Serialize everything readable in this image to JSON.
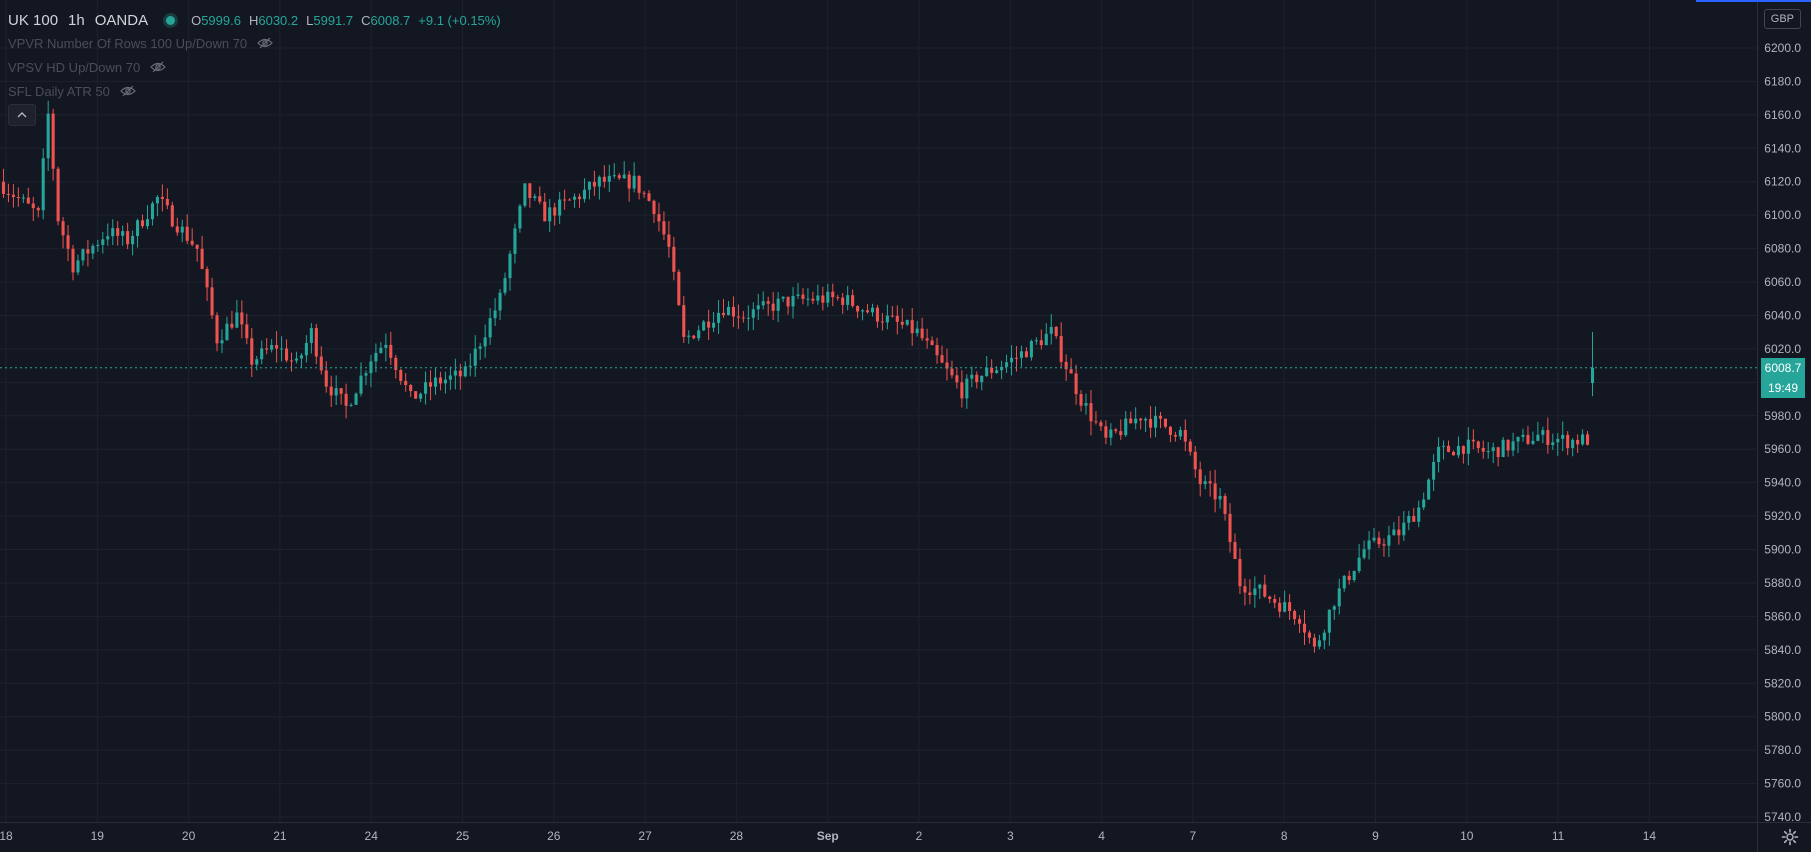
{
  "legend": {
    "symbol": "UK 100",
    "timeframe": "1h",
    "source": "OANDA",
    "open_label": "O",
    "open": "5999.6",
    "high_label": "H",
    "high": "6030.2",
    "low_label": "L",
    "low": "5991.7",
    "close_label": "C",
    "close": "6008.7",
    "change": "+9.1 (+0.15%)"
  },
  "indicators": [
    {
      "label": "VPVR Number Of Rows 100 Up/Down 70",
      "icon": "eye-hidden-icon"
    },
    {
      "label": "VPSV HD Up/Down 70",
      "icon": "eye-hidden-icon"
    },
    {
      "label": "SFL Daily ATR 50",
      "icon": "eye-hidden-icon"
    }
  ],
  "currency": "GBP",
  "last_price": "6008.7",
  "countdown": "19:49",
  "colors": {
    "up": "#26a69a",
    "down": "#ef5350",
    "background": "#131722",
    "grid": "#1e222d",
    "text": "#b2b5be",
    "accent": "#2962ff"
  },
  "chart_data": {
    "type": "candlestick",
    "timeframe": "1h",
    "y_axis": {
      "min": 5740,
      "max": 6200,
      "step": 20,
      "ticks": [
        "6200.0",
        "6180.0",
        "6160.0",
        "6140.0",
        "6120.0",
        "6100.0",
        "6080.0",
        "6060.0",
        "6040.0",
        "6020.0",
        "6000.0",
        "5980.0",
        "5960.0",
        "5940.0",
        "5920.0",
        "5900.0",
        "5880.0",
        "5860.0",
        "5840.0",
        "5820.0",
        "5800.0",
        "5780.0",
        "5760.0",
        "5740.0"
      ]
    },
    "x_axis": {
      "labels": [
        "18",
        "19",
        "20",
        "21",
        "24",
        "25",
        "26",
        "27",
        "28",
        "Sep",
        "2",
        "3",
        "4",
        "7",
        "8",
        "9",
        "10",
        "11",
        "14"
      ],
      "bold": [
        "Sep"
      ]
    },
    "candle_count": 321,
    "path": [
      [
        0,
        6120
      ],
      [
        8,
        6100
      ],
      [
        10,
        6160
      ],
      [
        12,
        6098
      ],
      [
        15,
        6070
      ],
      [
        22,
        6090
      ],
      [
        26,
        6085
      ],
      [
        32,
        6110
      ],
      [
        35,
        6098
      ],
      [
        40,
        6080
      ],
      [
        44,
        6026
      ],
      [
        48,
        6040
      ],
      [
        51,
        6013
      ],
      [
        56,
        6022
      ],
      [
        60,
        6010
      ],
      [
        63,
        6030
      ],
      [
        66,
        6000
      ],
      [
        70,
        5985
      ],
      [
        75,
        6015
      ],
      [
        78,
        6025
      ],
      [
        83,
        5990
      ],
      [
        88,
        6000
      ],
      [
        94,
        6005
      ],
      [
        101,
        6050
      ],
      [
        106,
        6115
      ],
      [
        110,
        6100
      ],
      [
        116,
        6110
      ],
      [
        121,
        6120
      ],
      [
        128,
        6120
      ],
      [
        132,
        6105
      ],
      [
        135,
        6080
      ],
      [
        138,
        6025
      ],
      [
        146,
        6045
      ],
      [
        150,
        6040
      ],
      [
        158,
        6048
      ],
      [
        164,
        6050
      ],
      [
        170,
        6050
      ],
      [
        177,
        6040
      ],
      [
        185,
        6030
      ],
      [
        190,
        6010
      ],
      [
        194,
        5995
      ],
      [
        197,
        6003
      ],
      [
        205,
        6015
      ],
      [
        212,
        6030
      ],
      [
        218,
        5990
      ],
      [
        223,
        5965
      ],
      [
        230,
        5980
      ],
      [
        238,
        5970
      ],
      [
        242,
        5940
      ],
      [
        246,
        5930
      ],
      [
        250,
        5880
      ],
      [
        254,
        5875
      ],
      [
        262,
        5860
      ],
      [
        265,
        5840
      ],
      [
        269,
        5870
      ],
      [
        275,
        5900
      ],
      [
        282,
        5910
      ],
      [
        286,
        5925
      ],
      [
        290,
        5958
      ],
      [
        295,
        5962
      ],
      [
        300,
        5958
      ],
      [
        305,
        5963
      ],
      [
        310,
        5968
      ],
      [
        316,
        5965
      ],
      [
        321,
        5966
      ]
    ],
    "volatility": 6,
    "last": {
      "open": 5999.6,
      "high": 6030.2,
      "low": 5991.7,
      "close": 6008.7
    }
  }
}
